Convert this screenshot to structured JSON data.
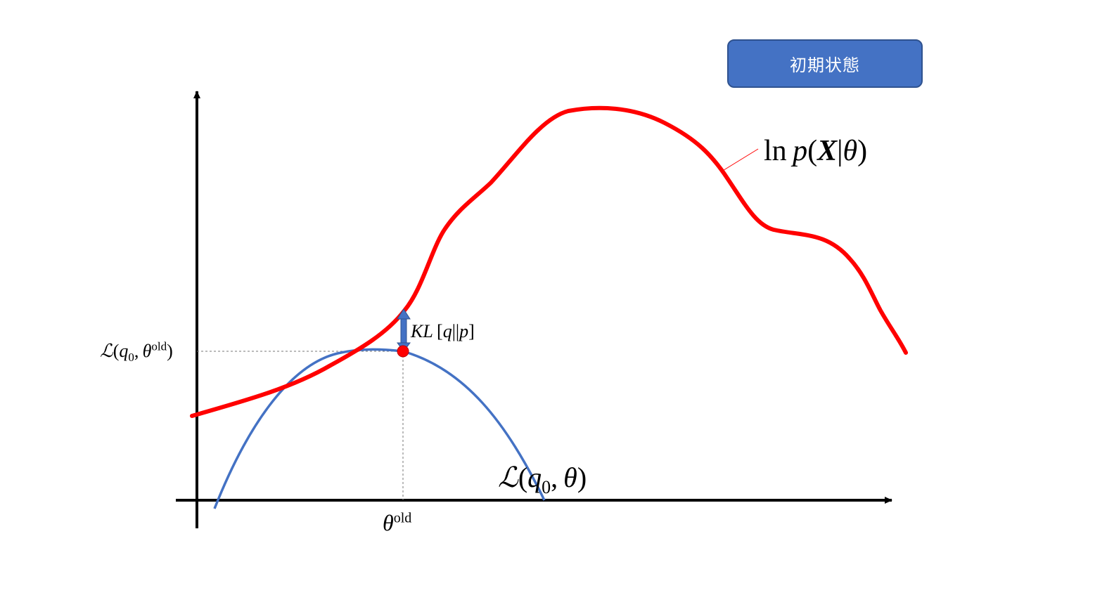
{
  "badge": {
    "label": "初期状態"
  },
  "colors": {
    "log_likelihood": "#ff0000",
    "lower_bound": "#4472c4",
    "badge_fill": "#4472c4",
    "arrow": "#4472c4"
  },
  "labels": {
    "log_likelihood": {
      "ln": "ln",
      "p": "p",
      "X": "X",
      "theta": "θ"
    },
    "lower_bound": {
      "L": "ℒ",
      "q": "q",
      "sub": "0",
      "theta": "θ"
    },
    "kl": {
      "KL": "KL",
      "q": "q",
      "p": "p"
    },
    "y_tick": {
      "L": "ℒ",
      "q": "q",
      "sub": "0",
      "theta": "θ",
      "sup": "old"
    },
    "x_tick": {
      "theta": "θ",
      "sup": "old"
    }
  }
}
